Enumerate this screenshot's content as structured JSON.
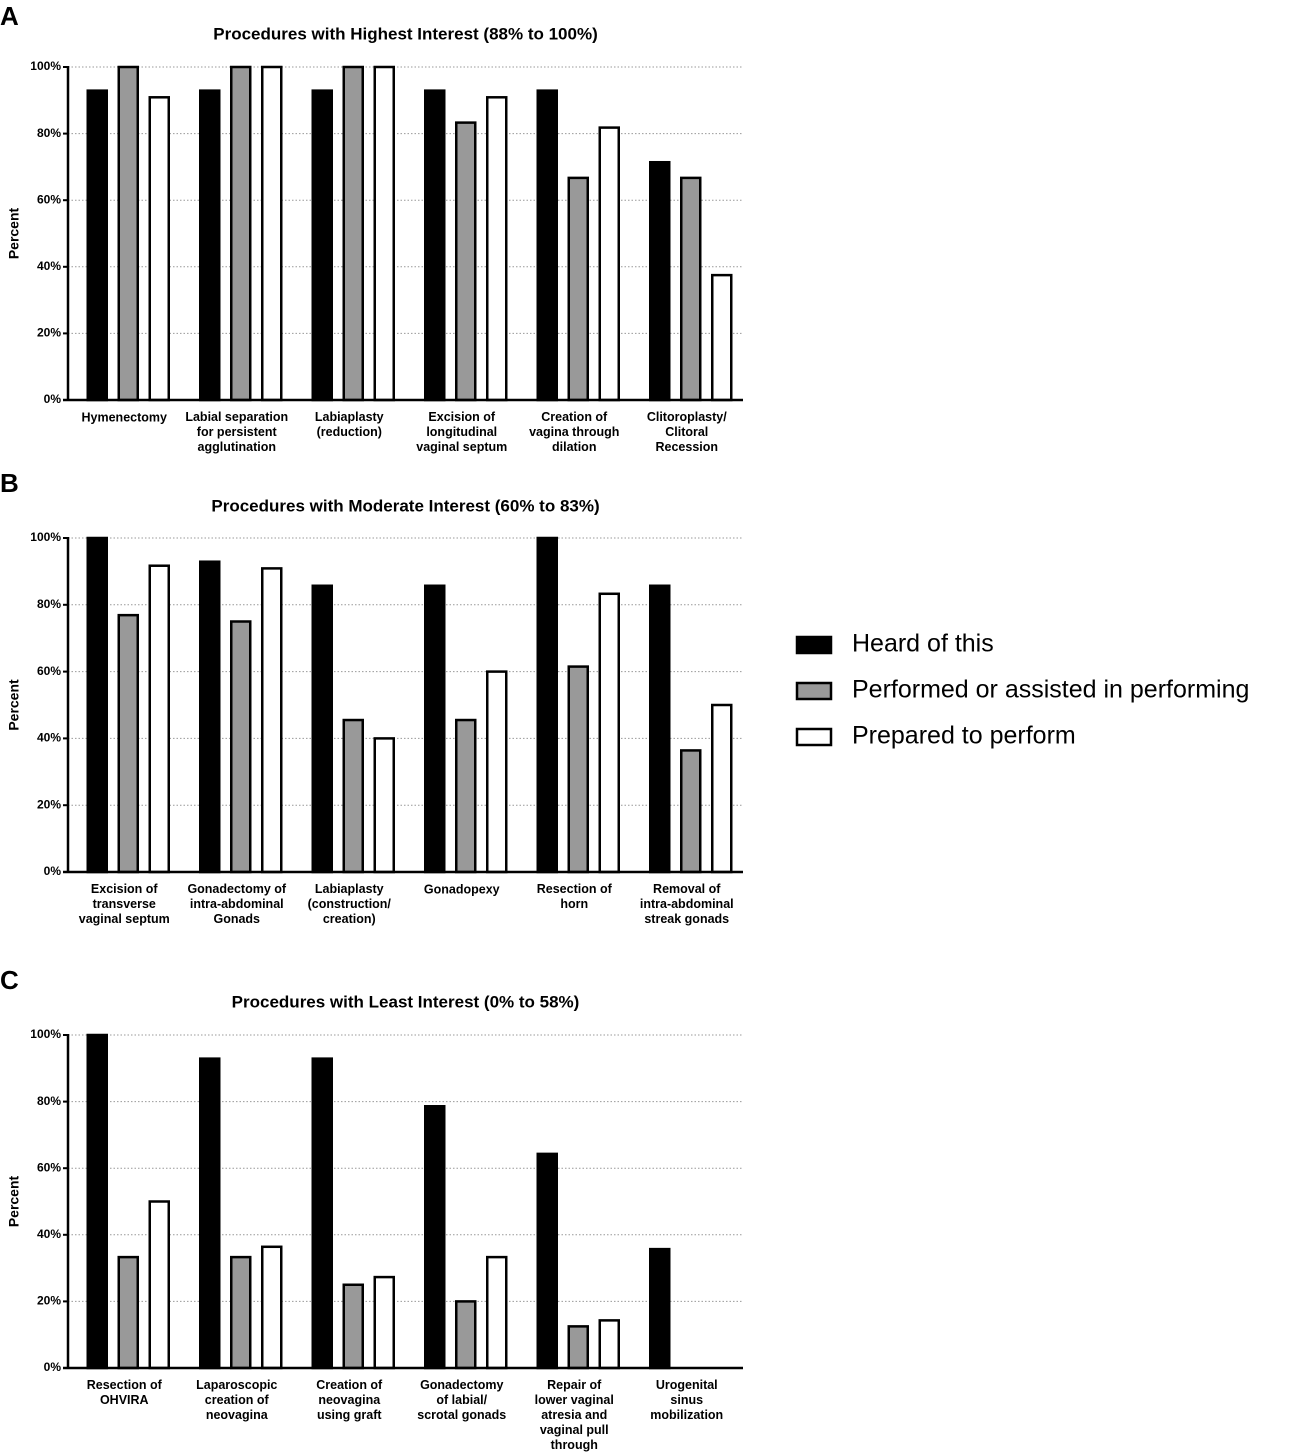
{
  "chart_data": [
    {
      "type": "bar",
      "label": "A",
      "title": "Procedures with Highest Interest  (88% to 100%)",
      "ylabel": "Percent",
      "categories": [
        "Hymenectomy",
        "Labial separation\nfor persistent\nagglutination",
        "Labiaplasty\n(reduction)",
        "Excision of\nlongitudinal\nvaginal septum",
        "Creation of\nvagina through\ndilation",
        "Clitoroplasty/\nClitoral\nRecession"
      ],
      "series": [
        {
          "name": "Heard of this",
          "color": "#000000",
          "values": [
            92.9,
            92.9,
            92.9,
            92.9,
            92.9,
            71.4
          ]
        },
        {
          "name": "Performed or assisted in performing",
          "color": "#999999",
          "values": [
            100,
            100,
            100,
            83.3,
            66.7,
            66.7
          ]
        },
        {
          "name": "Prepared to perform",
          "color": "#ffffff",
          "values": [
            90.9,
            100,
            100,
            90.9,
            81.8,
            37.5
          ]
        }
      ],
      "ylim": [
        0,
        100
      ],
      "yticks": [
        {
          "value": 0,
          "label": "0%"
        },
        {
          "value": 20,
          "label": "20%"
        },
        {
          "value": 40,
          "label": "40%"
        },
        {
          "value": 60,
          "label": "60%"
        },
        {
          "value": 80,
          "label": "80%"
        },
        {
          "value": 100,
          "label": "100%"
        }
      ],
      "grid": true
    },
    {
      "type": "bar",
      "label": "B",
      "title": "Procedures with Moderate Interest (60% to 83%)",
      "ylabel": "Percent",
      "categories": [
        "Excision of\ntransverse\nvaginal septum",
        "Gonadectomy of\nintra-abdominal\nGonads",
        "Labiaplasty\n(construction/\ncreation)",
        "Gonadopexy",
        "Resection of\nhorn",
        "Removal of\nintra-abdominal\nstreak gonads"
      ],
      "series": [
        {
          "name": "Heard of this",
          "color": "#000000",
          "values": [
            100,
            92.9,
            85.7,
            85.7,
            100,
            85.7
          ]
        },
        {
          "name": "Performed or assisted in performing",
          "color": "#999999",
          "values": [
            76.9,
            75,
            45.5,
            45.5,
            61.5,
            36.4
          ]
        },
        {
          "name": "Prepared to perform",
          "color": "#ffffff",
          "values": [
            91.7,
            90.9,
            40,
            60,
            83.3,
            50
          ]
        }
      ],
      "ylim": [
        0,
        100
      ],
      "yticks": [
        {
          "value": 0,
          "label": "0%"
        },
        {
          "value": 20,
          "label": "20%"
        },
        {
          "value": 40,
          "label": "40%"
        },
        {
          "value": 60,
          "label": "60%"
        },
        {
          "value": 80,
          "label": "80%"
        },
        {
          "value": 100,
          "label": "100%"
        }
      ],
      "grid": true
    },
    {
      "type": "bar",
      "label": "C",
      "title": "Procedures with Least Interest  (0% to 58%)",
      "ylabel": "Percent",
      "categories": [
        "Resection of\nOHVIRA",
        "Laparoscopic\ncreation of\nneovagina",
        "Creation of\nneovagina\nusing graft",
        "Gonadectomy\nof labial/\nscrotal gonads",
        "Repair of\nlower vaginal\natresia and\nvaginal pull\nthrough",
        "Urogenital\nsinus\nmobilization"
      ],
      "series": [
        {
          "name": "Heard of this",
          "color": "#000000",
          "values": [
            100,
            92.9,
            92.9,
            78.6,
            64.3,
            35.7
          ]
        },
        {
          "name": "Performed or assisted in performing",
          "color": "#999999",
          "values": [
            33.3,
            33.3,
            25,
            20,
            12.5,
            0
          ]
        },
        {
          "name": "Prepared to perform",
          "color": "#ffffff",
          "values": [
            50,
            36.4,
            27.3,
            33.3,
            14.3,
            0
          ]
        }
      ],
      "ylim": [
        0,
        100
      ],
      "yticks": [
        {
          "value": 0,
          "label": "0%"
        },
        {
          "value": 20,
          "label": "20%"
        },
        {
          "value": 40,
          "label": "40%"
        },
        {
          "value": 60,
          "label": "60%"
        },
        {
          "value": 80,
          "label": "80%"
        },
        {
          "value": 100,
          "label": "100%"
        }
      ],
      "grid": true
    }
  ]
}
